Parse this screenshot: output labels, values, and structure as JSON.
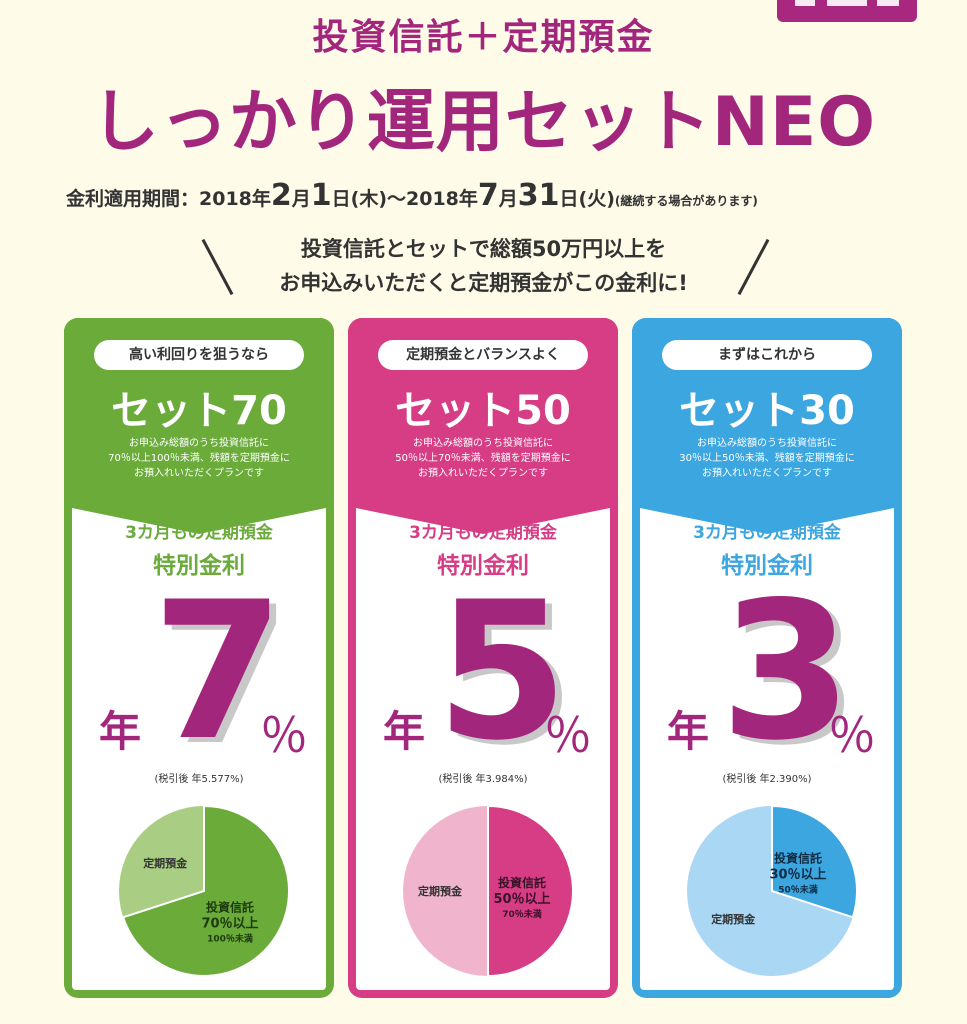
{
  "header": {
    "subtitle": "投資信託＋定期預金",
    "title": "しっかり運用セットNEO",
    "period_label": "金利適用期間：2018年",
    "period_start_month": "2",
    "period_mid1": "月",
    "period_start_day": "1",
    "period_mid2": "日(木)〜2018年",
    "period_end_month": "7",
    "period_mid3": "月",
    "period_end_day": "31",
    "period_mid4": "日(火)",
    "period_note": "(継続する場合があります)",
    "slogan_line1": "投資信託とセットで総額50万円以上を",
    "slogan_line2": "お申込みいただくと定期預金がこの金利に!"
  },
  "colors": {
    "brand": "#a3267d",
    "green": "#6aab3a",
    "pink": "#d63d85",
    "blue": "#3ca6e0"
  },
  "cards": [
    {
      "tag": "高い利回りを狙うなら",
      "name": "セット70",
      "desc1": "お申込み総額のうち投資信託に",
      "desc2": "70％以上100％未満、残額を定期預金に",
      "desc3": "お預入れいただくプランです",
      "rate_label1": "3カ月もの定期預金",
      "rate_label2": "特別金利",
      "rate_prefix": "年",
      "rate": "7",
      "rate_unit": "％",
      "after_tax": "(税引後 年5.577%)",
      "pie_deposit": "定期預金",
      "pie_invest1": "投資信託",
      "pie_invest2": "70％以上",
      "pie_invest3": "100％未満",
      "invest_share": 0.7
    },
    {
      "tag": "定期預金とバランスよく",
      "name": "セット50",
      "desc1": "お申込み総額のうち投資信託に",
      "desc2": "50％以上70％未満、残額を定期預金に",
      "desc3": "お預入れいただくプランです",
      "rate_label1": "3カ月もの定期預金",
      "rate_label2": "特別金利",
      "rate_prefix": "年",
      "rate": "5",
      "rate_unit": "％",
      "after_tax": "(税引後 年3.984%)",
      "pie_deposit": "定期預金",
      "pie_invest1": "投資信託",
      "pie_invest2": "50％以上",
      "pie_invest3": "70％未満",
      "invest_share": 0.5
    },
    {
      "tag": "まずはこれから",
      "name": "セット30",
      "desc1": "お申込み総額のうち投資信託に",
      "desc2": "30％以上50％未満、残額を定期預金に",
      "desc3": "お預入れいただくプランです",
      "rate_label1": "3カ月もの定期預金",
      "rate_label2": "特別金利",
      "rate_prefix": "年",
      "rate": "3",
      "rate_unit": "％",
      "after_tax": "(税引後 年2.390%)",
      "pie_deposit": "定期預金",
      "pie_invest1": "投資信託",
      "pie_invest2": "30％以上",
      "pie_invest3": "50％未満",
      "invest_share": 0.3
    }
  ]
}
